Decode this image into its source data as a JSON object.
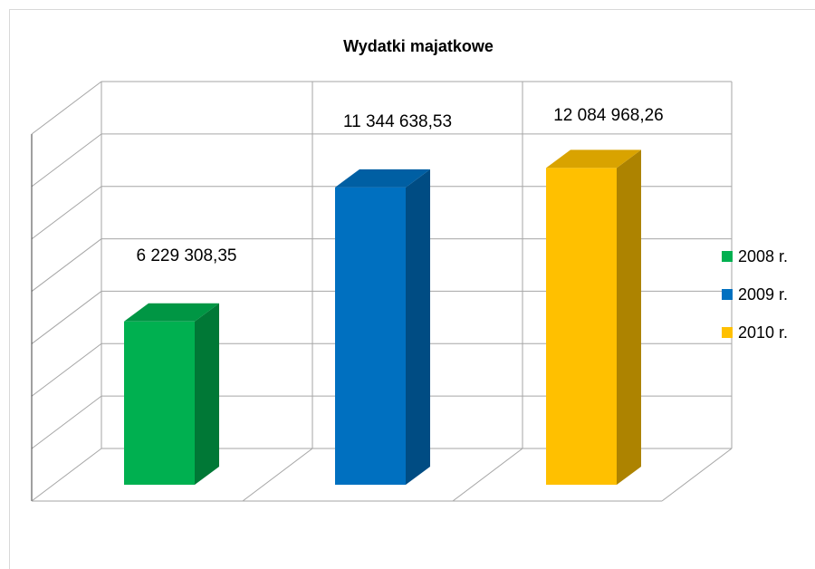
{
  "chart_data": {
    "type": "bar3d",
    "title": "Wydatki majatkowe",
    "series": [
      {
        "name": "2008 r.",
        "color": "#00b050",
        "values": [
          6229308.35
        ],
        "value_labels": [
          "6 229 308,35"
        ]
      },
      {
        "name": "2009 r.",
        "color": "#0070c0",
        "values": [
          11344638.53
        ],
        "value_labels": [
          "11 344 638,53"
        ]
      },
      {
        "name": "2010 r.",
        "color": "#ffc000",
        "values": [
          12084968.26
        ],
        "value_labels": [
          "12 084 968,26"
        ]
      }
    ],
    "ylim": [
      0,
      14000000
    ],
    "yticks": [
      0,
      2000000,
      4000000,
      6000000,
      8000000,
      10000000,
      12000000,
      14000000
    ],
    "grid": true,
    "legend": "right"
  }
}
